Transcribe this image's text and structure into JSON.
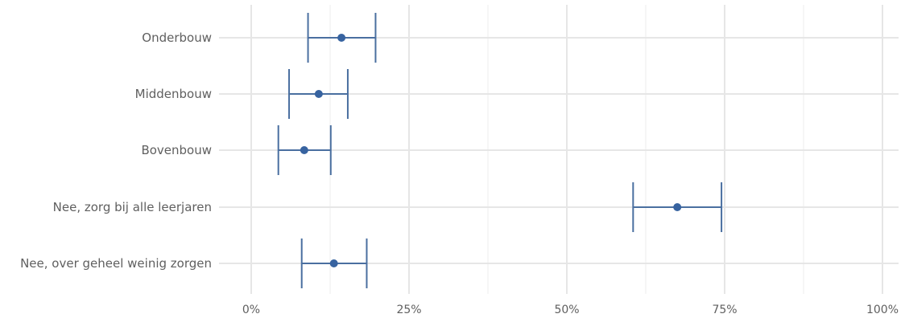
{
  "chart_data": {
    "type": "scatter",
    "subtype": "point-range (dot with error bars)",
    "orientation": "horizontal",
    "categories": [
      "Onderbouw",
      "Middenbouw",
      "Bovenbouw",
      "Nee, zorg bij alle leerjaren",
      "Nee, over geheel weinig zorgen"
    ],
    "series": [
      {
        "estimate": [
          14.3,
          10.7,
          8.4,
          67.5,
          13.1
        ],
        "lower": [
          9.0,
          6.0,
          4.3,
          60.5,
          8.0
        ],
        "upper": [
          19.7,
          15.3,
          12.6,
          74.5,
          18.3
        ]
      }
    ],
    "x_ticks": [
      "0%",
      "25%",
      "50%",
      "75%",
      "100%"
    ],
    "xlim": [
      0,
      100
    ],
    "grid": true,
    "colors": {
      "point": "#3763a0",
      "errorbar": "#4a6fa0",
      "grid": "#e6e6e6",
      "text": "#5f5f5f"
    }
  }
}
